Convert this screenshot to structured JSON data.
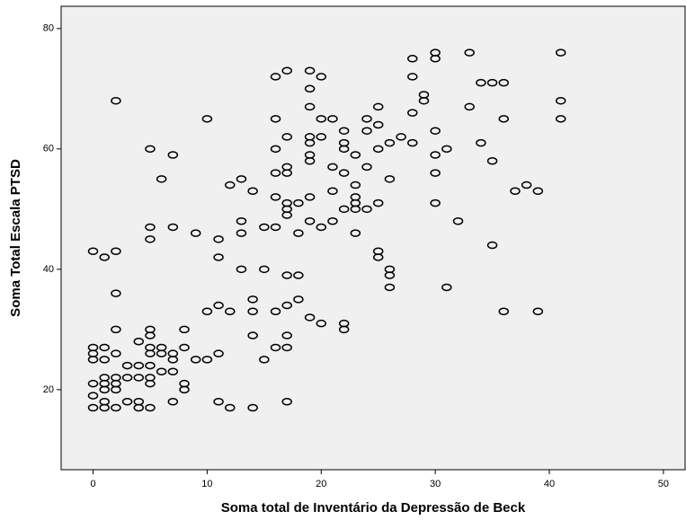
{
  "chart_data": {
    "type": "scatter",
    "x_label": "Soma total de Inventário da Depressão de Beck",
    "y_label": "Soma Total Escala PTSD",
    "xlim": [
      -2.8,
      51.9
    ],
    "ylim": [
      6.7,
      83.7
    ],
    "xticks": [
      0,
      10,
      20,
      30,
      40,
      50
    ],
    "yticks": [
      20,
      40,
      60,
      80
    ],
    "color": "#000000",
    "x": [
      0,
      0,
      0,
      0,
      0,
      0,
      0,
      1,
      1,
      1,
      1,
      1,
      1,
      1,
      1,
      2,
      2,
      2,
      2,
      2,
      2,
      2,
      2,
      2,
      3,
      3,
      3,
      4,
      4,
      4,
      4,
      4,
      5,
      5,
      5,
      5,
      5,
      5,
      5,
      5,
      5,
      5,
      5,
      6,
      6,
      6,
      6,
      7,
      7,
      7,
      7,
      7,
      7,
      8,
      8,
      8,
      8,
      9,
      9,
      10,
      10,
      10,
      11,
      11,
      11,
      11,
      11,
      12,
      12,
      12,
      13,
      13,
      13,
      13,
      14,
      14,
      14,
      14,
      14,
      15,
      15,
      15,
      16,
      16,
      16,
      16,
      16,
      16,
      16,
      16,
      17,
      17,
      17,
      17,
      17,
      17,
      17,
      17,
      17,
      17,
      17,
      17,
      18,
      18,
      18,
      18,
      19,
      19,
      19,
      19,
      19,
      19,
      19,
      19,
      19,
      19,
      20,
      20,
      20,
      20,
      20,
      21,
      21,
      21,
      21,
      22,
      22,
      22,
      22,
      22,
      22,
      22,
      23,
      23,
      23,
      23,
      23,
      23,
      24,
      24,
      24,
      24,
      25,
      25,
      25,
      25,
      25,
      25,
      26,
      26,
      26,
      26,
      26,
      27,
      28,
      28,
      28,
      28,
      29,
      29,
      30,
      30,
      30,
      30,
      30,
      30,
      31,
      31,
      32,
      33,
      33,
      34,
      34,
      35,
      35,
      35,
      36,
      36,
      36,
      37,
      38,
      39,
      39,
      41,
      41,
      41
    ],
    "y": [
      43,
      27,
      26,
      25,
      21,
      19,
      17,
      42,
      27,
      25,
      22,
      21,
      20,
      18,
      17,
      68,
      43,
      36,
      30,
      26,
      22,
      21,
      20,
      17,
      24,
      22,
      18,
      28,
      24,
      22,
      18,
      17,
      60,
      47,
      45,
      30,
      29,
      27,
      26,
      24,
      22,
      21,
      17,
      55,
      27,
      26,
      23,
      59,
      47,
      26,
      25,
      23,
      18,
      30,
      27,
      21,
      20,
      46,
      25,
      65,
      33,
      25,
      45,
      42,
      34,
      26,
      18,
      54,
      33,
      17,
      55,
      48,
      46,
      40,
      53,
      35,
      33,
      29,
      17,
      47,
      40,
      25,
      72,
      65,
      60,
      56,
      52,
      47,
      33,
      27,
      73,
      62,
      57,
      56,
      51,
      50,
      49,
      39,
      34,
      29,
      27,
      18,
      51,
      46,
      39,
      35,
      73,
      70,
      67,
      62,
      61,
      59,
      58,
      52,
      48,
      32,
      72,
      65,
      62,
      47,
      31,
      65,
      57,
      53,
      48,
      63,
      61,
      60,
      56,
      50,
      31,
      30,
      59,
      54,
      52,
      51,
      50,
      46,
      65,
      63,
      57,
      50,
      67,
      64,
      60,
      51,
      43,
      42,
      61,
      55,
      40,
      39,
      37,
      62,
      75,
      72,
      66,
      61,
      69,
      68,
      76,
      75,
      63,
      59,
      56,
      51,
      60,
      37,
      48,
      76,
      67,
      71,
      61,
      71,
      58,
      44,
      71,
      65,
      33,
      53,
      54,
      53,
      33,
      76,
      68,
      65
    ]
  }
}
